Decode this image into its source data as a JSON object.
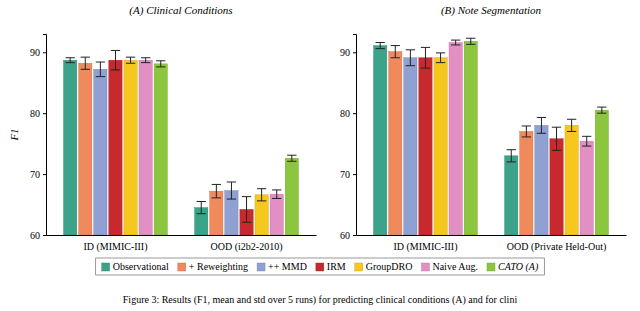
{
  "chart_data": [
    {
      "type": "bar",
      "title": "(A) Clinical Conditions",
      "y_label": "F1",
      "caption": "Figure 3: Results (F1, mean and std over 5 runs) for predicting clinical conditions (A) and for clini",
      "categories": [
        "ID (MIMIC-III)",
        "OOD (i2b2-2010)"
      ],
      "ylim": [
        60,
        93
      ],
      "yticks": [
        60,
        70,
        80,
        90
      ],
      "grid": false,
      "legend": "bottom",
      "series": [
        {
          "name": "Observational",
          "color": "#3aa38a",
          "values": [
            88.7,
            64.5
          ],
          "errors": [
            0.4,
            1.0
          ]
        },
        {
          "name": "+ Reweighting",
          "color": "#f08a5d",
          "values": [
            88.2,
            67.2
          ],
          "errors": [
            1.0,
            1.1
          ]
        },
        {
          "name": "++ MMD",
          "color": "#8fa0d2",
          "values": [
            87.2,
            67.3
          ],
          "errors": [
            1.2,
            1.4
          ]
        },
        {
          "name": "IRM",
          "color": "#c62a2f",
          "values": [
            88.7,
            64.2
          ],
          "errors": [
            1.6,
            2.1
          ]
        },
        {
          "name": "GroupDRO",
          "color": "#f6c71c",
          "values": [
            88.7,
            66.6
          ],
          "errors": [
            0.5,
            1.0
          ]
        },
        {
          "name": "Naive Aug.",
          "color": "#e38fc4",
          "values": [
            88.7,
            66.7
          ],
          "errors": [
            0.4,
            0.7
          ]
        },
        {
          "name": "CATO (A)",
          "color": "#8cc63f",
          "values": [
            88.1,
            72.6
          ],
          "errors": [
            0.5,
            0.5
          ]
        }
      ]
    },
    {
      "type": "bar",
      "title": "(B) Note Segmentation",
      "categories": [
        "ID (MIMIC-III)",
        "OOD (Private Held-Out)"
      ],
      "ylim": [
        60,
        93
      ],
      "yticks": [
        60,
        70,
        80,
        90
      ],
      "grid": false,
      "series": [
        {
          "name": "Observational",
          "color": "#3aa38a",
          "values": [
            91.1,
            73.0
          ],
          "errors": [
            0.5,
            1.0
          ]
        },
        {
          "name": "+ Reweighting",
          "color": "#f08a5d",
          "values": [
            90.1,
            77.0
          ],
          "errors": [
            1.0,
            0.9
          ]
        },
        {
          "name": "++ MMD",
          "color": "#8fa0d2",
          "values": [
            89.1,
            78.0
          ],
          "errors": [
            1.3,
            1.3
          ]
        },
        {
          "name": "IRM",
          "color": "#c62a2f",
          "values": [
            89.1,
            75.8
          ],
          "errors": [
            1.7,
            1.9
          ]
        },
        {
          "name": "GroupDRO",
          "color": "#f6c71c",
          "values": [
            89.1,
            78.0
          ],
          "errors": [
            0.8,
            1.0
          ]
        },
        {
          "name": "Naive Aug.",
          "color": "#e38fc4",
          "values": [
            91.6,
            75.4
          ],
          "errors": [
            0.4,
            0.8
          ]
        },
        {
          "name": "CATO (A)",
          "color": "#8cc63f",
          "values": [
            91.8,
            80.5
          ],
          "errors": [
            0.5,
            0.5
          ]
        }
      ]
    }
  ]
}
